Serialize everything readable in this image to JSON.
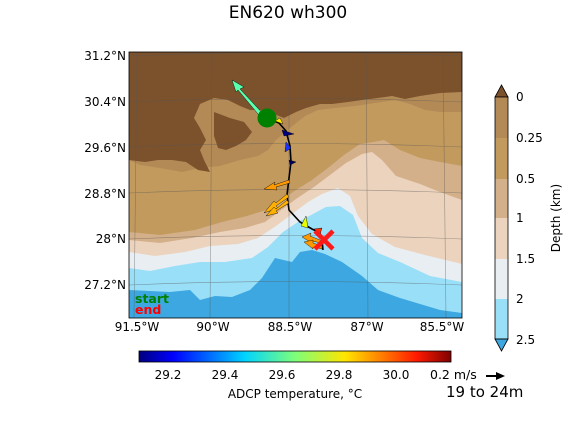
{
  "title": "EN620 wh300",
  "map": {
    "lat_ticks": [
      "31.2°N",
      "30.4°N",
      "29.6°N",
      "28.8°N",
      "28°N",
      "27.2°N"
    ],
    "lon_ticks": [
      "91.5°W",
      "90°W",
      "88.5°W",
      "87°W",
      "85.5°W"
    ],
    "legend_start": "start",
    "legend_end": "end",
    "colors": {
      "land_dark": "#7c522d",
      "land_mid": "#b38a56",
      "shelf_0": "#c29a5e",
      "shelf_025": "#d4b08a",
      "shelf_05": "#ecd3bd",
      "depth_1": "#e8eef2",
      "depth_15": "#99dff8",
      "depth_2": "#3ca7e0",
      "start_marker": "#008000",
      "end_marker": "#ff0000",
      "track": "#000000"
    }
  },
  "depth_colorbar": {
    "label": "Depth (km)",
    "ticks": [
      "0",
      "0.25",
      "0.5",
      "1",
      "1.5",
      "2",
      "2.5"
    ],
    "colors": [
      "#b38a56",
      "#c29a5e",
      "#d4b08a",
      "#ecd3bd",
      "#e8eef2",
      "#99dff8",
      "#3ca7e0"
    ]
  },
  "temp_colorbar": {
    "label": "ADCP temperature, °C",
    "ticks": [
      "29.2",
      "29.4",
      "29.6",
      "29.8",
      "30.0"
    ],
    "range": [
      29.1,
      30.2
    ]
  },
  "quiver": {
    "scale_label": "0.2 m/s",
    "depth_range": "19 to 24m"
  }
}
